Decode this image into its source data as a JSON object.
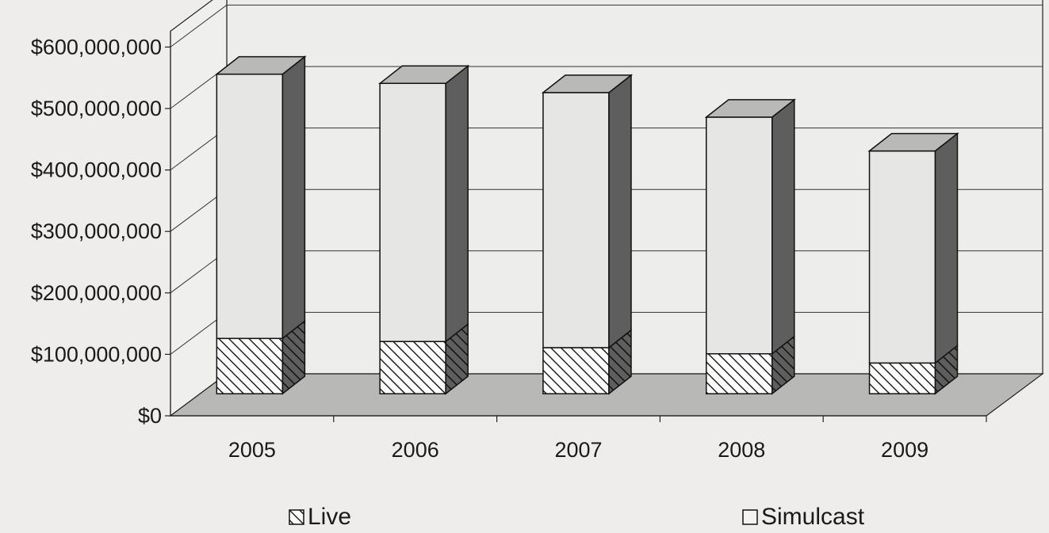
{
  "chart_data": {
    "type": "bar",
    "stacked": true,
    "three_d": true,
    "categories": [
      "2005",
      "2006",
      "2007",
      "2008",
      "2009"
    ],
    "series": [
      {
        "name": "Live",
        "values": [
          90000000,
          85000000,
          75000000,
          65000000,
          50000000
        ],
        "pattern": "diagonal-hatch"
      },
      {
        "name": "Simulcast",
        "values": [
          430000000,
          420000000,
          415000000,
          385000000,
          345000000
        ],
        "pattern": "solid"
      }
    ],
    "y_ticks": [
      "$0",
      "$100,000,000",
      "$200,000,000",
      "$300,000,000",
      "$400,000,000",
      "$500,000,000",
      "$600,000,000"
    ],
    "ylim": [
      0,
      600000000
    ],
    "grid": true,
    "legend_position": "bottom",
    "title": "",
    "xlabel": "",
    "ylabel": "",
    "colors": {
      "live": "#ffffff",
      "simulcast": "#e6e6e4",
      "top_face": "#b9b9b7",
      "side_face": "#5e5e5e",
      "floor": "#b8b8b6",
      "back_wall": "#ededeb"
    }
  }
}
